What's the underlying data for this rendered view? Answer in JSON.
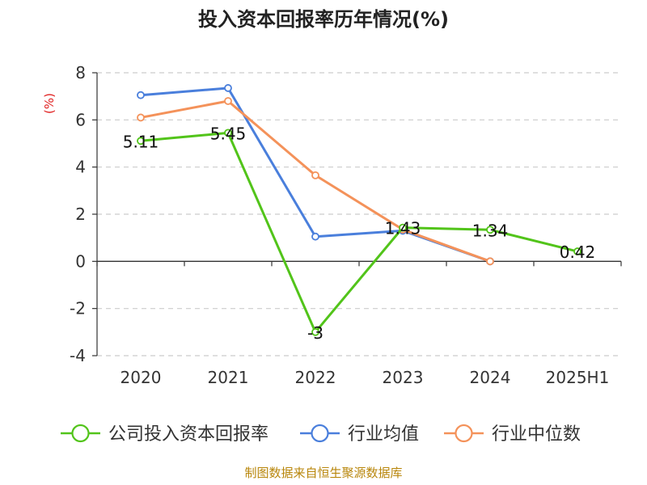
{
  "chart_data": {
    "type": "line",
    "title": "投入资本回报率历年情况(%)",
    "ylabel": "(%)",
    "ylim": [
      -4,
      8
    ],
    "yticks": [
      -4,
      -2,
      0,
      2,
      4,
      6,
      8
    ],
    "categories": [
      "2020",
      "2021",
      "2022",
      "2023",
      "2024",
      "2025H1"
    ],
    "grid": true,
    "legend_position": "bottom",
    "series": [
      {
        "name": "公司投入资本回报率",
        "color": "#52c41a",
        "values": [
          5.11,
          5.45,
          -3,
          1.43,
          1.34,
          0.42
        ],
        "labels": [
          "5.11",
          "5.45",
          "-3",
          "1.43",
          "1.34",
          "0.42"
        ]
      },
      {
        "name": "行业均值",
        "color": "#4a7fdc",
        "values": [
          7.05,
          7.35,
          1.05,
          1.3,
          0,
          null
        ],
        "labels": []
      },
      {
        "name": "行业中位数",
        "color": "#f4925a",
        "values": [
          6.1,
          6.8,
          3.65,
          1.35,
          0,
          null
        ],
        "labels": []
      }
    ]
  },
  "footer": {
    "note": "制图数据来自恒生聚源数据库",
    "color": "#b8860b"
  }
}
